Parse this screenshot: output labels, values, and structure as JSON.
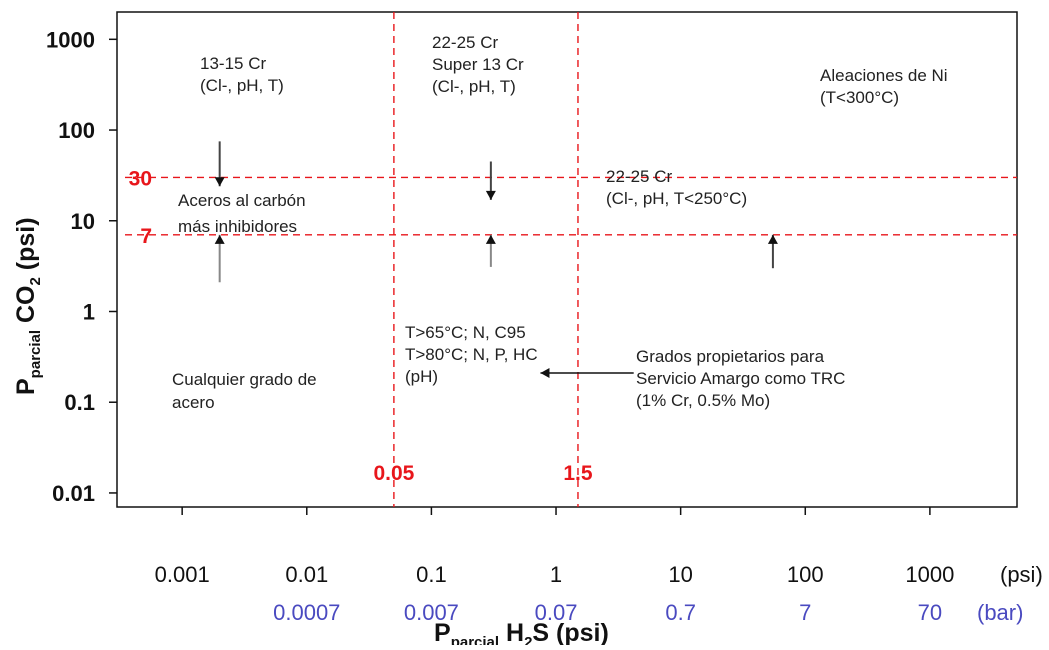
{
  "chart_data": {
    "type": "region-map",
    "x_scale": "log",
    "y_scale": "log",
    "xlim": [
      0.0003,
      5000
    ],
    "ylim": [
      0.007,
      2000
    ],
    "x_ticks": [
      0.001,
      0.01,
      0.1,
      1,
      10,
      100,
      1000
    ],
    "x_tick_labels": [
      "0.001",
      "0.01",
      "0.1",
      "1",
      "10",
      "100",
      "1000"
    ],
    "x_unit": "(psi)",
    "x_secondary_tick_labels": [
      "0.0007",
      "0.007",
      "0.07",
      "0.7",
      "7",
      "70"
    ],
    "x_secondary_unit": "(bar)",
    "y_ticks": [
      0.01,
      0.1,
      1,
      10,
      100,
      1000
    ],
    "y_tick_labels": [
      "0.01",
      "0.1",
      "1",
      "10",
      "100",
      "1000"
    ],
    "xlabel": {
      "main": "P",
      "sub": "parcial",
      "rest1": " H",
      "sub2": "2",
      "rest2": "S (psi)"
    },
    "ylabel": {
      "main": "P",
      "sub": "parcial",
      "rest1": "  CO",
      "sub2": "2",
      "rest2": " (psi)"
    },
    "thresholds": {
      "vertical": [
        {
          "value": 0.05,
          "label": "0.05"
        },
        {
          "value": 1.5,
          "label": "1.5"
        }
      ],
      "horizontal": [
        {
          "value": 30,
          "label": "30"
        },
        {
          "value": 7,
          "label": "7"
        }
      ]
    },
    "regions": [
      {
        "lines": [
          "13-15 Cr",
          "(Cl-, pH, T)"
        ]
      },
      {
        "lines": [
          "22-25 Cr",
          "Super 13 Cr",
          "(Cl-, pH, T)"
        ]
      },
      {
        "lines": [
          "Aleaciones de Ni",
          "(T<300°C)"
        ]
      },
      {
        "lines": [
          "22-25 Cr",
          "(Cl-, pH, T<250°C)"
        ]
      },
      {
        "lines": [
          "Aceros  al  carbón",
          "más  inhibidores"
        ]
      },
      {
        "lines": [
          "T>65°C; N, C95",
          "T>80°C; N, P, HC",
          "(pH)"
        ]
      },
      {
        "lines": [
          "Grados          propietarios       para",
          "Servicio     Amargo  como  TRC",
          "(1% Cr, 0.5% Mo)"
        ]
      },
      {
        "lines": [
          "Cualquier grado de",
          "acero"
        ]
      }
    ],
    "colors": {
      "threshold": "#e8161b",
      "secondary_axis": "#4a4ac0",
      "arrow_up": "#888888",
      "arrow_down": "#444444"
    }
  }
}
